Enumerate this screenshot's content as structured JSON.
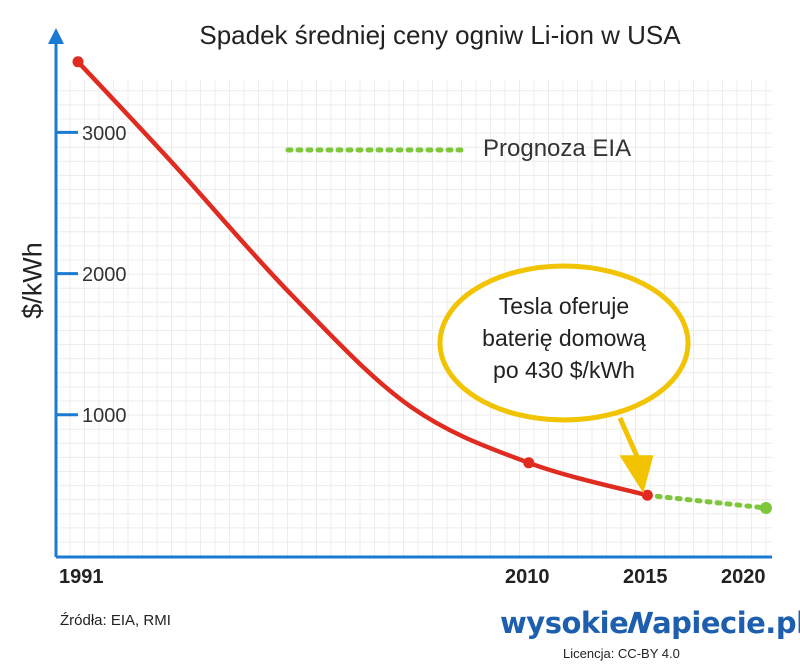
{
  "chart_data": {
    "type": "line",
    "title": "Spadek średniej ceny ogniw Li-ion w USA",
    "ylabel": "$/kWh",
    "xlabel": "",
    "xlim": [
      1991,
      2020
    ],
    "ylim": [
      0,
      3500
    ],
    "x_ticks": [
      "1991",
      "2010",
      "2015",
      "2020"
    ],
    "y_ticks": [
      "1000",
      "2000",
      "3000"
    ],
    "series": [
      {
        "name": "",
        "color": "#e02b20",
        "style": "solid",
        "points": [
          [
            1991,
            3500
          ],
          [
            1995,
            2780
          ],
          [
            2000,
            1850
          ],
          [
            2005,
            1060
          ],
          [
            2010,
            660
          ],
          [
            2015,
            430
          ]
        ]
      },
      {
        "name": "Prognoza EIA",
        "color": "#7ec73b",
        "style": "dotted",
        "points": [
          [
            2015,
            430
          ],
          [
            2020,
            340
          ]
        ]
      }
    ],
    "annotation": {
      "lines": [
        "Tesla oferuje",
        "baterię domową",
        "po 430 $/kWh"
      ],
      "target_x": 2015,
      "target_y": 430,
      "color": "#f2c300"
    },
    "legend": {
      "label": "Prognoza EIA",
      "placement": "top-right"
    },
    "axis_color": "#1a7bd0",
    "grid": true
  },
  "footer": {
    "sources": "Źródła: EIA, RMI",
    "brand_left": "wysokie",
    "brand_right": "apiecie.pl",
    "brand_bolt": "N",
    "license": "Licencja: CC-BY 4.0"
  }
}
